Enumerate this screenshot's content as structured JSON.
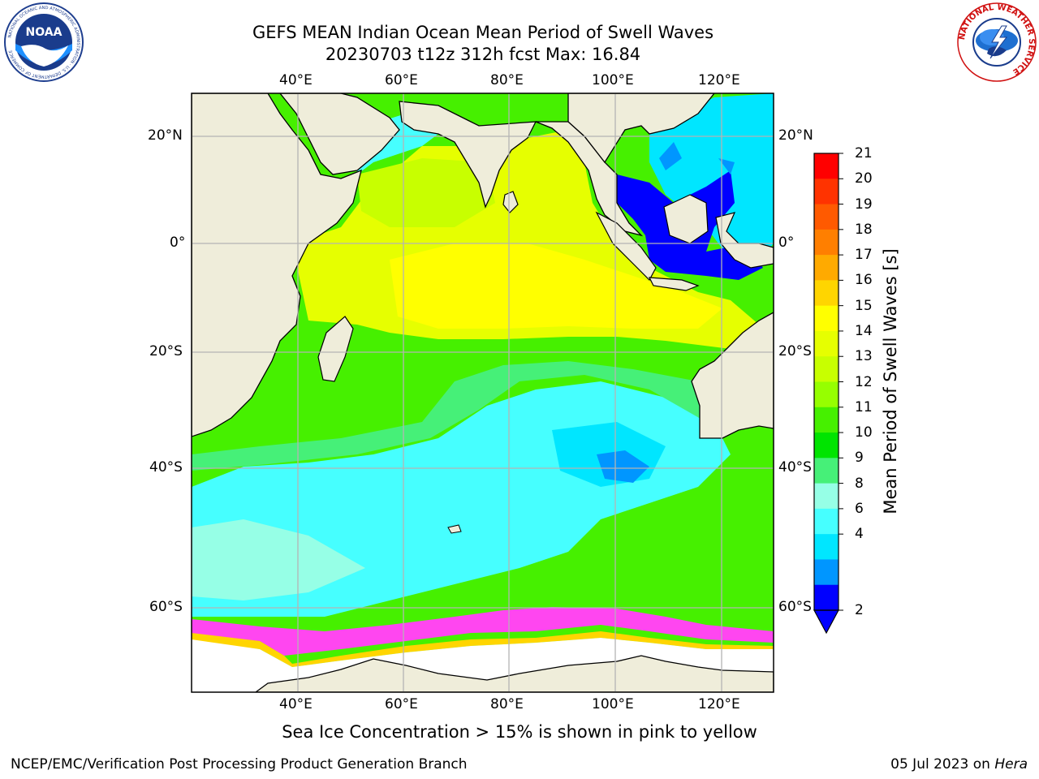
{
  "header": {
    "title_line1": "GEFS MEAN Indian Ocean Mean Period of Swell Waves",
    "title_line2": "20230703 t12z 312h fcst   Max: 16.84"
  },
  "logos": {
    "noaa": {
      "text": "NOAA",
      "ring_text": "NATIONAL OCEANIC AND ATMOSPHERIC ADMINISTRATION · U.S. DEPARTMENT OF COMMERCE"
    },
    "nws": {
      "ring_text": "NATIONAL WEATHER SERVICE"
    }
  },
  "map": {
    "lon_labels": [
      "40°E",
      "60°E",
      "80°E",
      "100°E",
      "120°E"
    ],
    "lat_labels": [
      "20°N",
      "0°",
      "20°S",
      "40°S",
      "60°S"
    ],
    "colors": {
      "land": "#efedda",
      "coast": "#000000",
      "grid": "#b4b4b4",
      "ice_free": "#ffffff"
    }
  },
  "colorbar": {
    "label": "Mean Period of Swell Waves [s]",
    "ticks": [
      "21",
      "20",
      "19",
      "18",
      "17",
      "16",
      "15",
      "14",
      "13",
      "12",
      "11",
      "10",
      "9",
      "8",
      "6",
      "4",
      "2"
    ],
    "colors_top_to_bottom": [
      "#ff0000",
      "#ff3300",
      "#ff5a00",
      "#ff7f00",
      "#ffaa00",
      "#ffd500",
      "#ffff00",
      "#e6ff00",
      "#c8ff00",
      "#96ff00",
      "#46f000",
      "#00e400",
      "#46f078",
      "#96ffe6",
      "#46ffff",
      "#00e6ff",
      "#0096ff",
      "#0000ff"
    ]
  },
  "footer": {
    "sea_ice_note": "Sea Ice Concentration > 15% is shown in pink to yellow",
    "credit": "NCEP/EMC/Verification Post Processing Product Generation Branch",
    "date": "05 Jul 2023 on",
    "machine": "Hera"
  }
}
